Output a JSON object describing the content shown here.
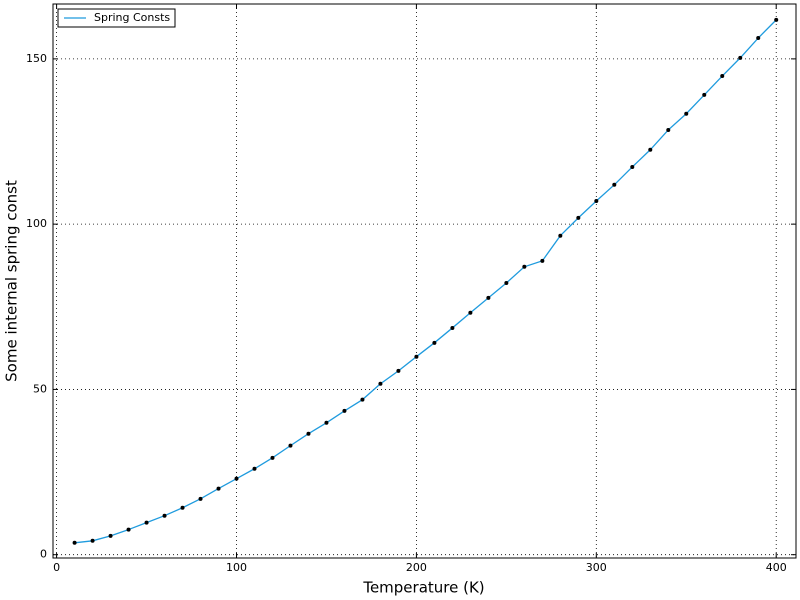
{
  "chart_data": {
    "type": "line",
    "xlabel": "Temperature (K)",
    "ylabel": "Some internal spring const",
    "x": [
      10,
      20,
      30,
      40,
      50,
      60,
      70,
      80,
      90,
      100,
      110,
      120,
      130,
      140,
      150,
      160,
      170,
      180,
      190,
      200,
      210,
      220,
      230,
      240,
      250,
      260,
      270,
      280,
      290,
      300,
      310,
      320,
      330,
      340,
      350,
      360,
      370,
      380,
      390,
      400
    ],
    "series": [
      {
        "name": "Spring Consts",
        "color": "#1f9bde",
        "marker_color": "#000000",
        "values": [
          3.6,
          4.2,
          5.7,
          7.6,
          9.7,
          11.8,
          14.2,
          16.9,
          20.0,
          23.0,
          26.0,
          29.3,
          33.0,
          36.6,
          39.9,
          43.5,
          46.9,
          51.7,
          55.6,
          59.9,
          64.1,
          68.6,
          73.2,
          77.7,
          82.2,
          87.1,
          88.9,
          96.5,
          101.9,
          107.0,
          111.9,
          117.3,
          122.5,
          128.5,
          133.4,
          139.1,
          144.8,
          150.3,
          156.3,
          161.8
        ]
      }
    ],
    "xlim": [
      -2,
      411
    ],
    "ylim": [
      -1,
      166.6
    ],
    "xticks": [
      0,
      100,
      200,
      300,
      400
    ],
    "yticks": [
      0,
      50,
      100,
      150
    ],
    "grid": true,
    "legend": "upper left"
  }
}
